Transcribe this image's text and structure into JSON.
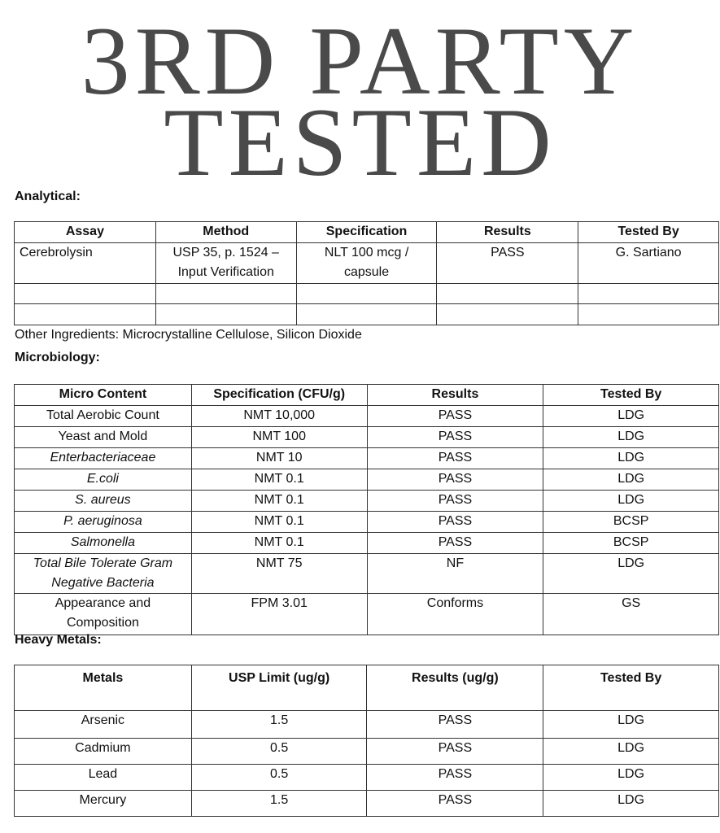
{
  "title": {
    "line1": "3RD PARTY",
    "line2": "TESTED"
  },
  "analytical": {
    "label": "Analytical:",
    "headers": [
      "Assay",
      "Method",
      "Specification",
      "Results",
      "Tested By"
    ],
    "rows": [
      [
        "Cerebrolysin",
        "USP 35, p. 1524 – Input Verification",
        "NLT 100 mcg / capsule",
        "PASS",
        "G. Sartiano"
      ],
      [
        "",
        "",
        "",
        "",
        ""
      ],
      [
        "",
        "",
        "",
        "",
        ""
      ]
    ]
  },
  "other_ingredients": "Other Ingredients: Microcrystalline Cellulose, Silicon Dioxide",
  "microbiology": {
    "label": "Microbiology:",
    "headers": [
      "Micro Content",
      "Specification (CFU/g)",
      "Results",
      "Tested By"
    ],
    "rows": [
      [
        "Total Aerobic Count",
        "NMT 10,000",
        "PASS",
        "LDG"
      ],
      [
        "Yeast and Mold",
        "NMT 100",
        "PASS",
        "LDG"
      ],
      [
        "Enterbacteriaceae",
        "NMT 10",
        "PASS",
        "LDG"
      ],
      [
        "E.coli",
        "NMT 0.1",
        "PASS",
        "LDG"
      ],
      [
        "S. aureus",
        "NMT 0.1",
        "PASS",
        "LDG"
      ],
      [
        "P. aeruginosa",
        "NMT 0.1",
        "PASS",
        "BCSP"
      ],
      [
        "Salmonella",
        "NMT 0.1",
        "PASS",
        "BCSP"
      ],
      [
        "Total Bile Tolerate Gram Negative Bacteria",
        "NMT 75",
        "NF",
        "LDG"
      ],
      [
        "Appearance and Composition",
        "FPM 3.01",
        "Conforms",
        "GS"
      ]
    ]
  },
  "heavy_metals": {
    "label": "Heavy Metals:",
    "headers": [
      "Metals",
      "USP Limit  (ug/g)",
      "Results (ug/g)",
      "Tested By"
    ],
    "rows": [
      [
        "Arsenic",
        "1.5",
        "PASS",
        "LDG"
      ],
      [
        "Cadmium",
        "0.5",
        "PASS",
        "LDG"
      ],
      [
        "Lead",
        "0.5",
        "PASS",
        "LDG"
      ],
      [
        "Mercury",
        "1.5",
        "PASS",
        "LDG"
      ]
    ]
  }
}
